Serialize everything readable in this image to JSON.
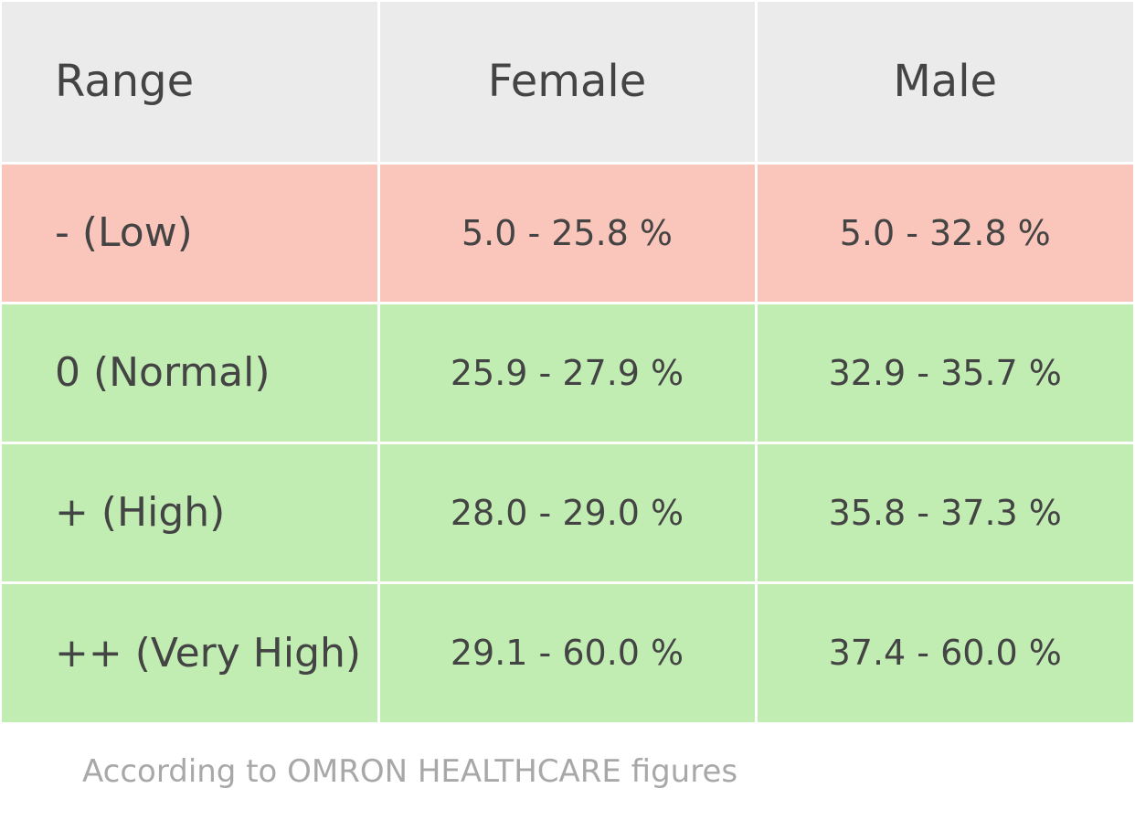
{
  "table": {
    "headers": {
      "range": "Range",
      "female": "Female",
      "male": "Male"
    },
    "rows": [
      {
        "range": "- (Low)",
        "female": "5.0 - 25.8 %",
        "male": "5.0 - 32.8 %",
        "status": "low"
      },
      {
        "range": "0 (Normal)",
        "female": "25.9 - 27.9 %",
        "male": "32.9 - 35.7 %",
        "status": "ok"
      },
      {
        "range": "+ (High)",
        "female": "28.0 - 29.0 %",
        "male": "35.8 - 37.3 %",
        "status": "ok"
      },
      {
        "range": "++ (Very High)",
        "female": "29.1 - 60.0 %",
        "male": "37.4 - 60.0 %",
        "status": "ok"
      }
    ]
  },
  "footnote": "According to OMRON HEALTHCARE figures",
  "colors": {
    "header_bg": "#ebebeb",
    "low_bg": "#fac5ba",
    "ok_bg": "#c1edb3",
    "text": "#444444",
    "footnote_text": "#a8a8a8"
  }
}
